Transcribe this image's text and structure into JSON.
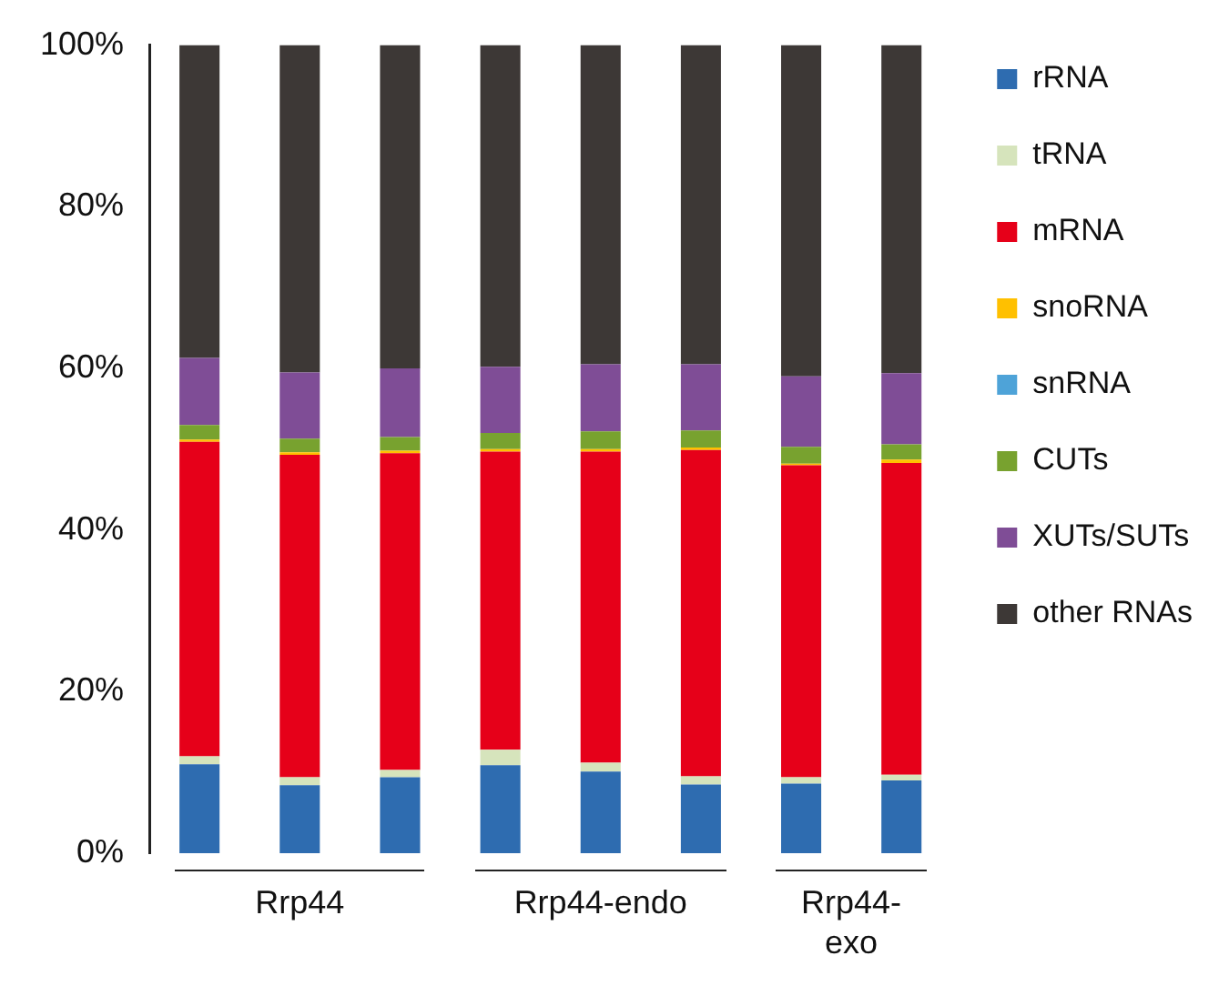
{
  "chart_data": {
    "type": "bar",
    "stacked": true,
    "categories": [
      null,
      null,
      null,
      null,
      null,
      null,
      null,
      null
    ],
    "series": [
      {
        "name": "rRNA",
        "color": "#2e6cb0",
        "values": [
          11.0,
          8.4,
          9.4,
          10.9,
          10.1,
          8.5,
          8.6,
          9.0
        ]
      },
      {
        "name": "tRNA",
        "color": "#d6e4bc",
        "values": [
          1.0,
          1.0,
          0.9,
          1.9,
          1.1,
          1.0,
          0.8,
          0.7
        ]
      },
      {
        "name": "mRNA",
        "color": "#e60019",
        "values": [
          38.9,
          39.9,
          39.2,
          36.9,
          38.5,
          40.4,
          38.6,
          38.6
        ]
      },
      {
        "name": "snoRNA",
        "color": "#ffc000",
        "values": [
          0.3,
          0.3,
          0.3,
          0.3,
          0.3,
          0.3,
          0.2,
          0.4
        ]
      },
      {
        "name": "snRNA",
        "color": "#4ea3d8",
        "values": [
          0,
          0,
          0,
          0,
          0,
          0,
          0,
          0
        ]
      },
      {
        "name": "CUTs",
        "color": "#78a22f",
        "values": [
          1.8,
          1.7,
          1.7,
          2.0,
          2.2,
          2.1,
          2.1,
          1.9
        ]
      },
      {
        "name": "XUTs/SUTs",
        "color": "#7f4d96",
        "values": [
          8.3,
          8.2,
          8.5,
          8.2,
          8.3,
          8.2,
          8.7,
          8.8
        ]
      },
      {
        "name": "other RNAs",
        "color": "#3d3836",
        "values": [
          38.7,
          40.5,
          40.0,
          39.8,
          39.5,
          39.5,
          41.0,
          40.6
        ]
      }
    ],
    "ylim": [
      0,
      100
    ],
    "yticks": [
      {
        "value": 0,
        "label": "0%"
      },
      {
        "value": 20,
        "label": "20%"
      },
      {
        "value": 40,
        "label": "40%"
      },
      {
        "value": 60,
        "label": "60%"
      },
      {
        "value": 80,
        "label": "80%"
      },
      {
        "value": 100,
        "label": "100%"
      }
    ],
    "grid": false,
    "legend": "right",
    "annotations": [
      "Rrp44",
      "Rrp44-endo",
      "Rrp44-exo"
    ]
  }
}
